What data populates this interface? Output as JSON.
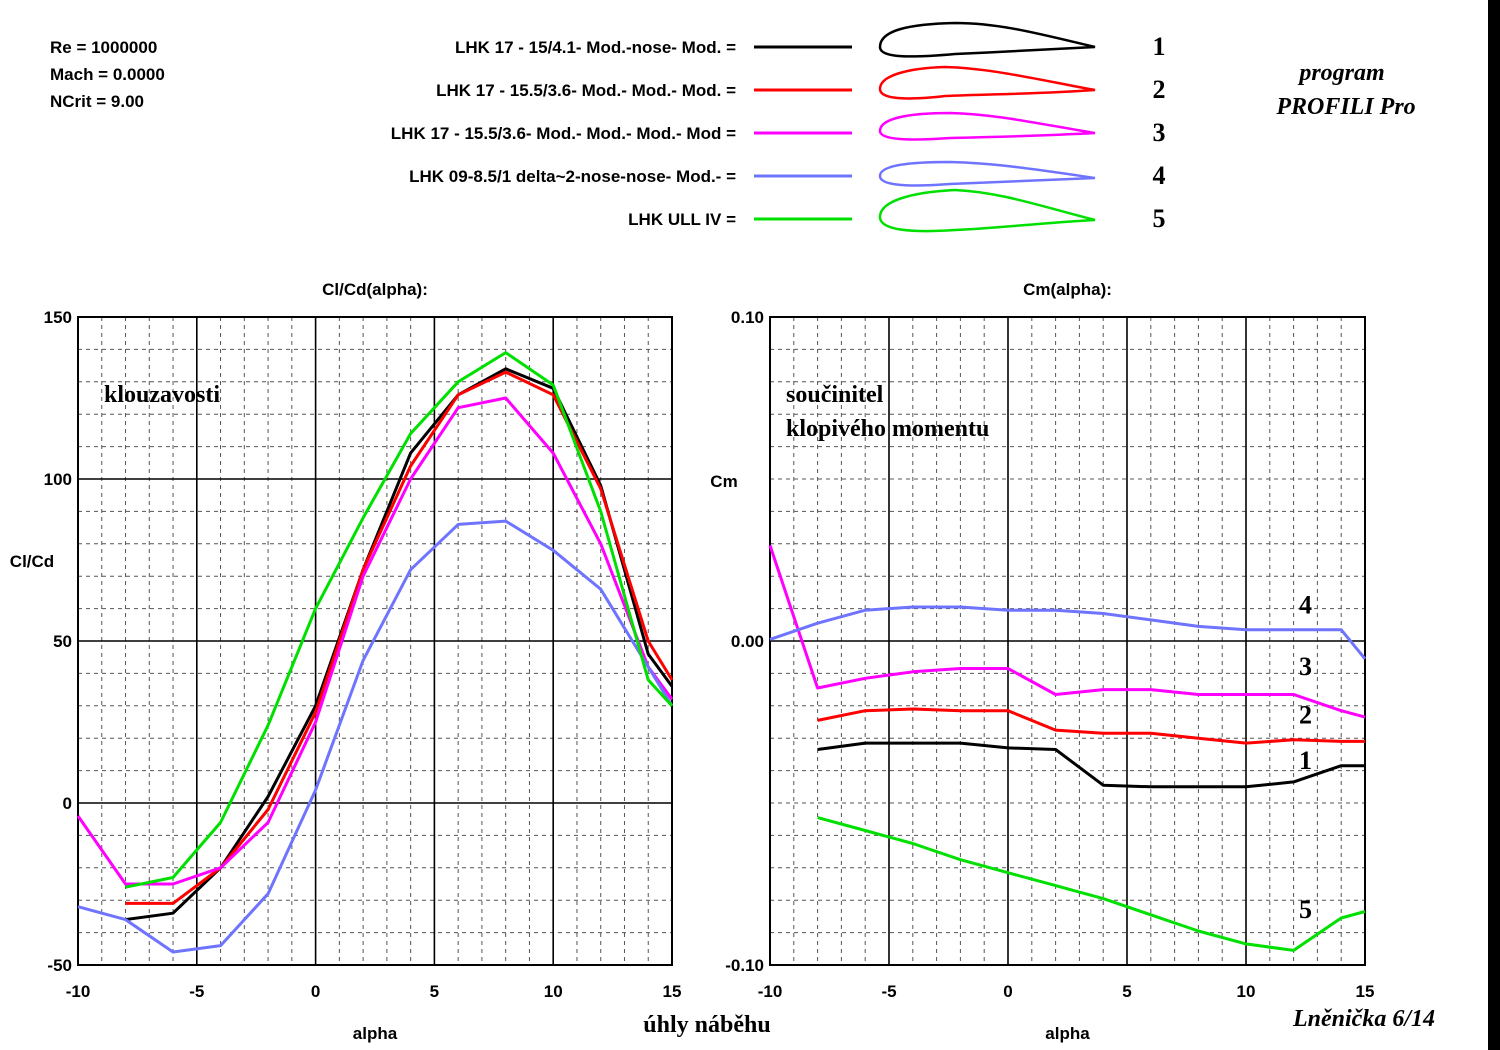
{
  "header": {
    "params": [
      "Re = 1000000",
      "Mach = 0.0000",
      "NCrit = 9.00"
    ],
    "program_line1": "program",
    "program_line2": "PROFILI  Pro"
  },
  "legend": [
    {
      "label": "LHK 17 - 15/4.1- Mod.-nose- Mod. =",
      "number": "1",
      "color": "#000000"
    },
    {
      "label": "LHK 17 - 15.5/3.6- Mod.- Mod.- Mod. =",
      "number": "2",
      "color": "#ff0000"
    },
    {
      "label": "LHK 17 - 15.5/3.6- Mod.- Mod.- Mod.- Mod =",
      "number": "3",
      "color": "#ff00ff"
    },
    {
      "label": "LHK 09-8.5/1     delta~2-nose-nose- Mod.- =",
      "number": "4",
      "color": "#6f74ff"
    },
    {
      "label": "LHK ULL IV =",
      "number": "5",
      "color": "#00e000"
    }
  ],
  "footer": {
    "center_note": "úhly  náběhu",
    "author": "Lněnička 6/14"
  },
  "chart_data": [
    {
      "type": "line",
      "title": "Cl/Cd(alpha):",
      "xlabel": "alpha",
      "ylabel": "Cl/Cd",
      "annotation": "klouzavosti",
      "xlim": [
        -10,
        15
      ],
      "ylim": [
        -50,
        150
      ],
      "xticks": [
        -10,
        -5,
        0,
        5,
        10,
        15
      ],
      "yticks": [
        -50,
        0,
        50,
        100,
        150
      ],
      "grid": true,
      "series": [
        {
          "name": "1",
          "color": "#000000",
          "x": [
            -8,
            -6,
            -4,
            -2,
            0,
            2,
            4,
            6,
            8,
            10,
            12,
            14,
            15
          ],
          "y": [
            -36,
            -34,
            -20,
            2,
            30,
            72,
            108,
            126,
            134,
            128,
            98,
            46,
            36
          ]
        },
        {
          "name": "2",
          "color": "#ff0000",
          "x": [
            -8,
            -6,
            -4,
            -2,
            0,
            2,
            4,
            6,
            8,
            10,
            12,
            14,
            15
          ],
          "y": [
            -31,
            -31,
            -20,
            -2,
            28,
            72,
            104,
            126,
            133,
            126,
            97,
            50,
            38
          ]
        },
        {
          "name": "3",
          "color": "#ff00ff",
          "x": [
            -10,
            -8,
            -6,
            -4,
            -2,
            0,
            2,
            4,
            6,
            8,
            10,
            12,
            14,
            15
          ],
          "y": [
            -4,
            -25,
            -25,
            -20,
            -6,
            25,
            70,
            100,
            122,
            125,
            108,
            80,
            42,
            32
          ]
        },
        {
          "name": "4",
          "color": "#6f74ff",
          "x": [
            -10,
            -8,
            -6,
            -4,
            -2,
            0,
            2,
            4,
            6,
            8,
            10,
            12,
            14,
            15
          ],
          "y": [
            -32,
            -36,
            -46,
            -44,
            -28,
            4,
            44,
            72,
            86,
            87,
            78,
            66,
            42,
            30
          ]
        },
        {
          "name": "5",
          "color": "#00e000",
          "x": [
            -8,
            -6,
            -4,
            -2,
            0,
            2,
            4,
            6,
            8,
            10,
            12,
            14,
            15
          ],
          "y": [
            -26,
            -23,
            -6,
            24,
            60,
            88,
            114,
            130,
            139,
            129,
            90,
            38,
            30
          ]
        }
      ]
    },
    {
      "type": "line",
      "title": "Cm(alpha):",
      "xlabel": "alpha",
      "ylabel": "Cm",
      "annotation_lines": [
        "součinitel",
        "klopivého momentu"
      ],
      "xlim": [
        -10,
        15
      ],
      "ylim": [
        -0.1,
        0.1
      ],
      "xticks": [
        -10,
        -5,
        0,
        5,
        10,
        15
      ],
      "yticks": [
        -0.1,
        0.0,
        0.1
      ],
      "ytick_labels": [
        "-0.10",
        "0.00",
        "0.10"
      ],
      "grid": true,
      "series": [
        {
          "name": "1",
          "color": "#000000",
          "x": [
            -8,
            -6,
            -4,
            -2,
            0,
            2,
            4,
            6,
            8,
            10,
            12,
            14,
            15
          ],
          "y": [
            -0.0335,
            -0.0315,
            -0.0315,
            -0.0315,
            -0.033,
            -0.0335,
            -0.0445,
            -0.045,
            -0.045,
            -0.045,
            -0.0435,
            -0.0385,
            -0.0385
          ]
        },
        {
          "name": "2",
          "color": "#ff0000",
          "x": [
            -8,
            -6,
            -4,
            -2,
            0,
            2,
            4,
            6,
            8,
            10,
            12,
            14,
            15
          ],
          "y": [
            -0.0245,
            -0.0215,
            -0.021,
            -0.0215,
            -0.0215,
            -0.0275,
            -0.0285,
            -0.0285,
            -0.03,
            -0.0315,
            -0.0305,
            -0.031,
            -0.031
          ]
        },
        {
          "name": "3",
          "color": "#ff00ff",
          "x": [
            -10,
            -8,
            -6,
            -4,
            -2,
            0,
            2,
            4,
            6,
            8,
            10,
            12,
            14,
            15
          ],
          "y": [
            0.0295,
            -0.0145,
            -0.0115,
            -0.0095,
            -0.0085,
            -0.0085,
            -0.0165,
            -0.015,
            -0.015,
            -0.0165,
            -0.0165,
            -0.0165,
            -0.0215,
            -0.0235
          ]
        },
        {
          "name": "4",
          "color": "#6f74ff",
          "x": [
            -10,
            -8,
            -6,
            -4,
            -2,
            0,
            2,
            4,
            6,
            8,
            10,
            12,
            14,
            15
          ],
          "y": [
            0.0005,
            0.0055,
            0.0095,
            0.0105,
            0.0105,
            0.0095,
            0.0095,
            0.0085,
            0.0065,
            0.0045,
            0.0035,
            0.0035,
            0.0035,
            -0.0055
          ]
        },
        {
          "name": "5",
          "color": "#00e000",
          "x": [
            -8,
            -6,
            -4,
            -2,
            0,
            2,
            4,
            6,
            8,
            10,
            12,
            14,
            15
          ],
          "y": [
            -0.0545,
            -0.0585,
            -0.0625,
            -0.0675,
            -0.0715,
            -0.0755,
            -0.0795,
            -0.0845,
            -0.0895,
            -0.0935,
            -0.0955,
            -0.0855,
            -0.0835
          ]
        }
      ],
      "series_number_labels": [
        {
          "name": "4",
          "x": 12.5,
          "y": 0.0085
        },
        {
          "name": "3",
          "x": 12.5,
          "y": -0.0105
        },
        {
          "name": "2",
          "x": 12.5,
          "y": -0.0255
        },
        {
          "name": "1",
          "x": 12.5,
          "y": -0.0395
        },
        {
          "name": "5",
          "x": 12.5,
          "y": -0.0855
        }
      ]
    }
  ]
}
